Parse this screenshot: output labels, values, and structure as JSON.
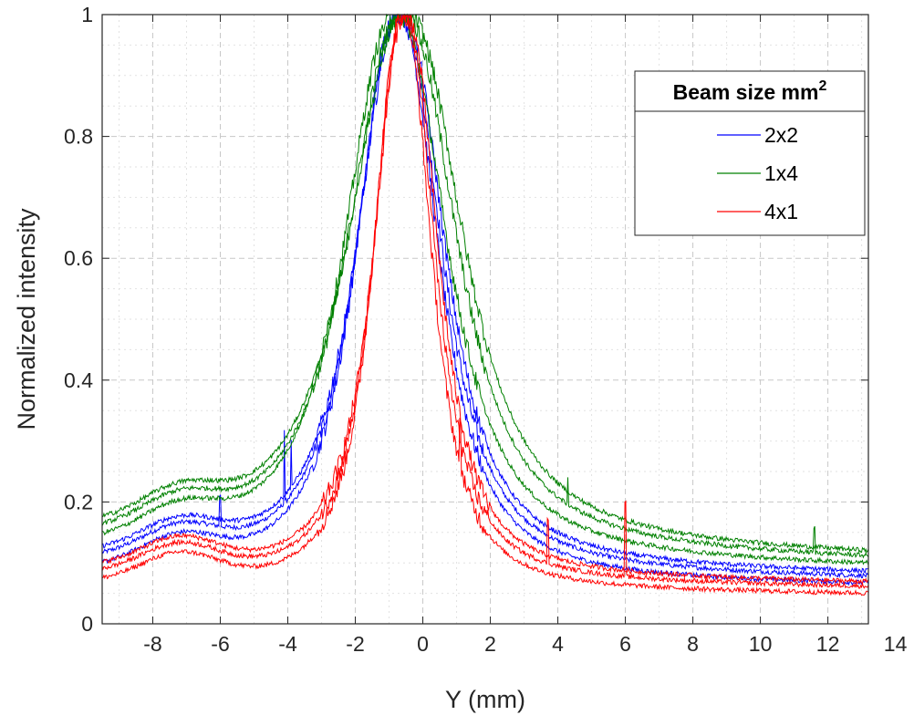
{
  "chart_data": {
    "type": "line",
    "xlabel": "Y (mm)",
    "ylabel": "Normalized intensity",
    "xlim": [
      -9.5,
      13.2
    ],
    "ylim": [
      0,
      1
    ],
    "xticks": [
      -8,
      -6,
      -4,
      -2,
      0,
      2,
      4,
      6,
      8,
      10,
      12,
      14
    ],
    "yticks": [
      0,
      0.2,
      0.4,
      0.6,
      0.8,
      1
    ],
    "ytick_labels": [
      "0",
      "0.2",
      "0.4",
      "0.6",
      "0.8",
      "1"
    ],
    "grid": true,
    "legend": {
      "title": "Beam size  mm",
      "title_superscript": "2",
      "position": "top-right"
    },
    "series": [
      {
        "name": "2x2",
        "color": "#0000ff",
        "traces": [
          {
            "baseline": 0.1,
            "x0": -0.7,
            "width": 1.45,
            "spikes": [
              [
                -6.0,
                0.05
              ],
              [
                -4.1,
                0.12
              ]
            ]
          },
          {
            "baseline": 0.085,
            "x0": -0.75,
            "width": 1.4,
            "spikes": []
          },
          {
            "baseline": 0.11,
            "x0": -0.65,
            "width": 1.5,
            "spikes": [
              [
                -3.9,
                0.08
              ]
            ]
          }
        ]
      },
      {
        "name": "1x4",
        "color": "#008000",
        "traces": [
          {
            "baseline": 0.14,
            "x0": -0.6,
            "width": 1.85,
            "spikes": [
              [
                4.3,
                0.04
              ],
              [
                11.6,
                0.04
              ]
            ]
          },
          {
            "baseline": 0.125,
            "x0": -0.8,
            "width": 1.75,
            "spikes": []
          },
          {
            "baseline": 0.15,
            "x0": -0.5,
            "width": 1.95,
            "spikes": []
          }
        ]
      },
      {
        "name": "4x1",
        "color": "#ff0000",
        "traces": [
          {
            "baseline": 0.08,
            "x0": -0.55,
            "width": 1.05,
            "spikes": [
              [
                3.7,
                0.07
              ],
              [
                6.0,
                0.12
              ]
            ]
          },
          {
            "baseline": 0.065,
            "x0": -0.6,
            "width": 1.0,
            "spikes": [
              [
                1.1,
                0.06
              ]
            ]
          },
          {
            "baseline": 0.09,
            "x0": -0.5,
            "width": 1.1,
            "spikes": []
          }
        ]
      }
    ]
  }
}
